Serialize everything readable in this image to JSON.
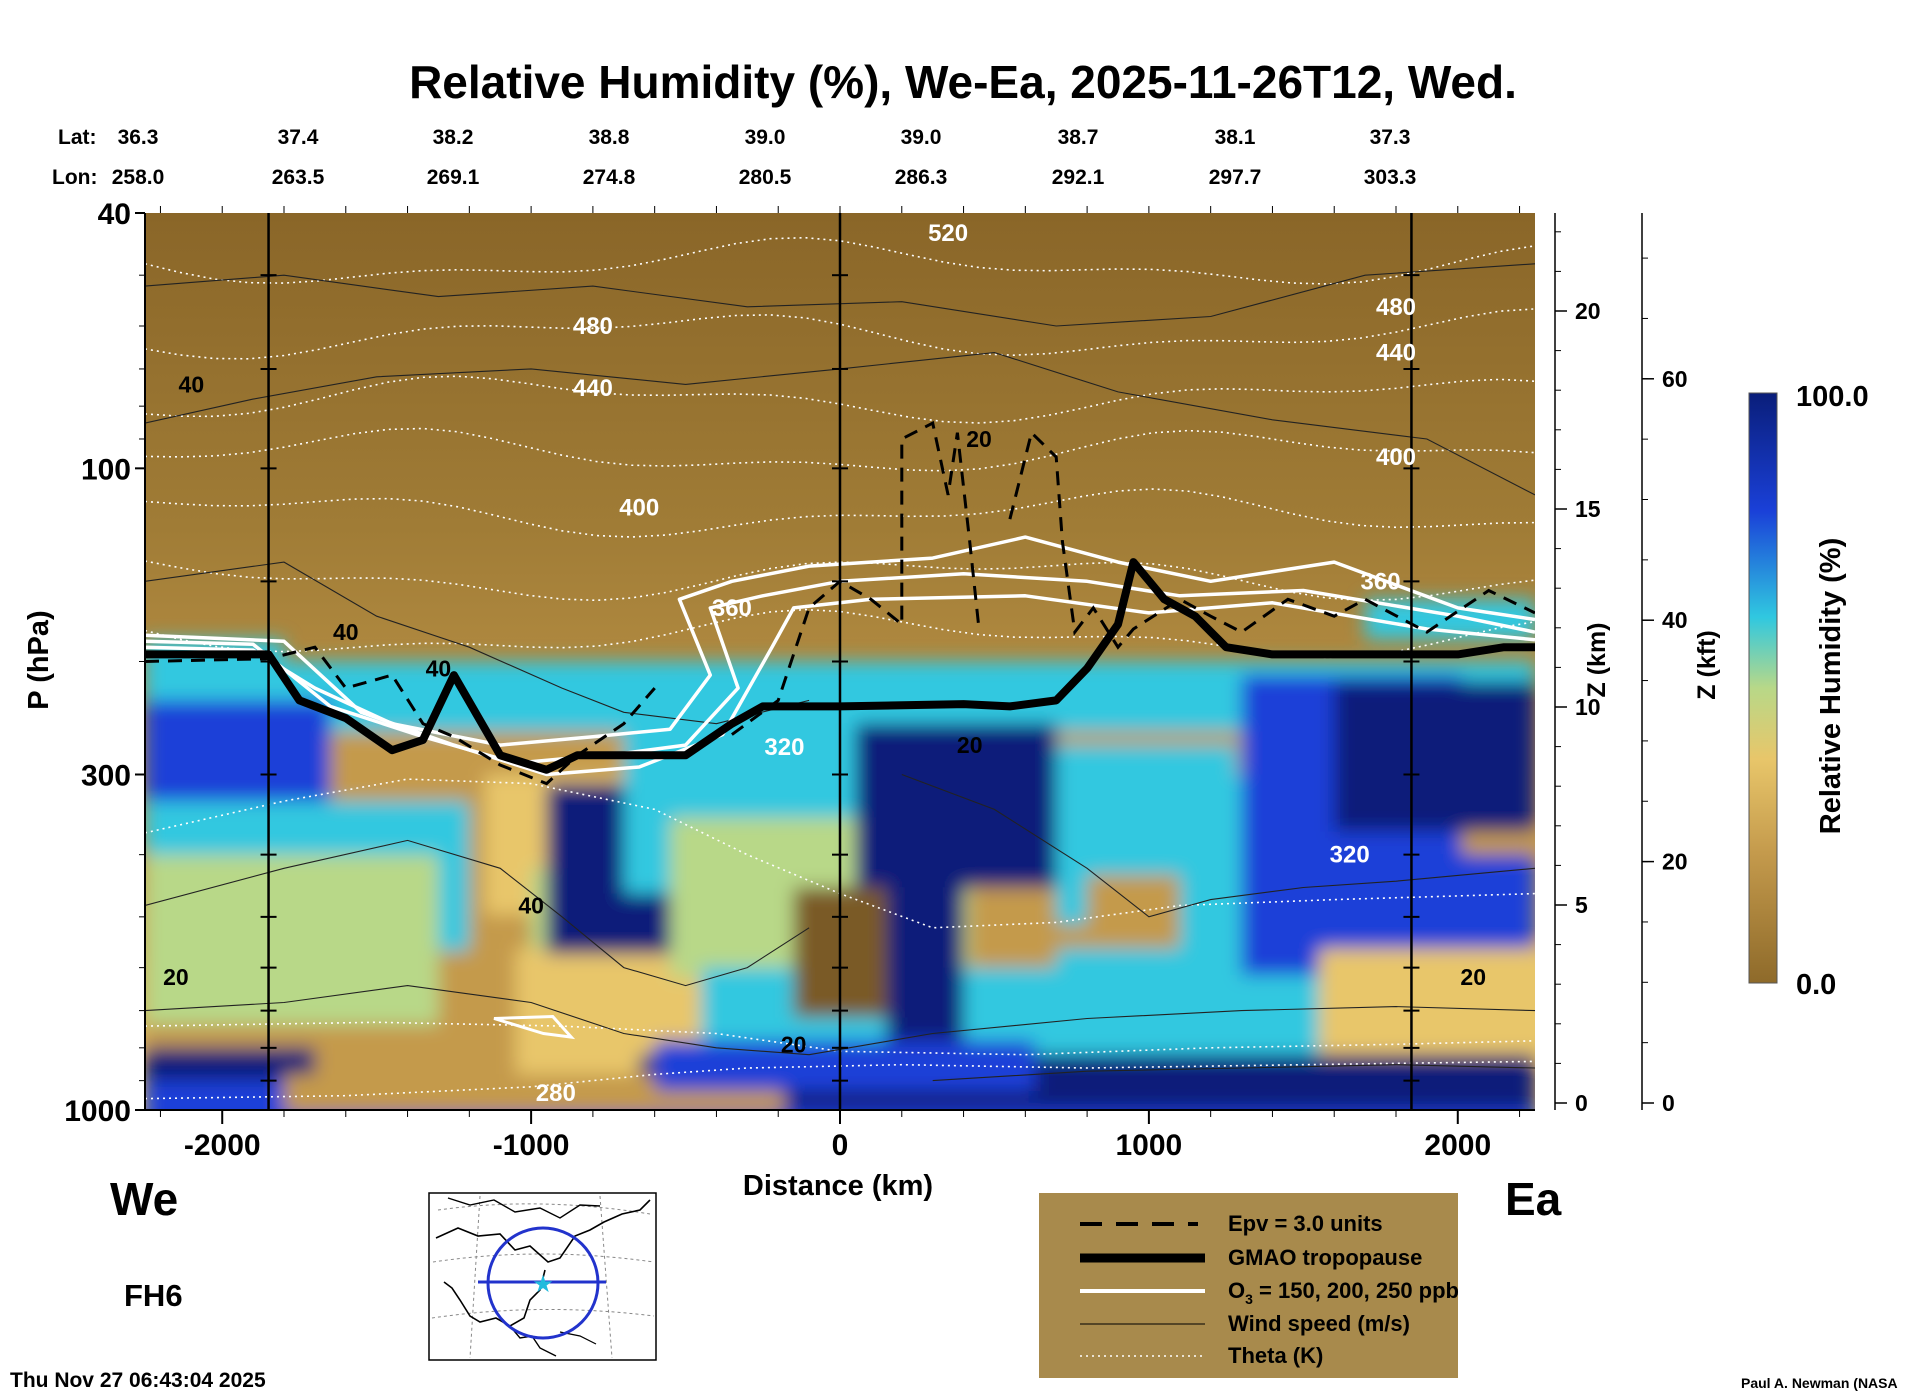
{
  "chart_data": {
    "type": "heatmap",
    "title": "Relative Humidity (%), We-Ea, 2025-11-26T12, Wed.",
    "variable": "Relative Humidity (%)",
    "xlabel": "Distance (km)",
    "ylabel": "P (hPa)",
    "xlim": [
      -2250,
      2250
    ],
    "ylim": [
      1000,
      40
    ],
    "x_ticks": [
      -2000,
      -1000,
      0,
      1000,
      2000
    ],
    "y_ticks": [
      1000,
      300,
      100,
      40
    ],
    "z_km_ticks": [
      0,
      5,
      10,
      15,
      20
    ],
    "z_kft_ticks": [
      0,
      20,
      40,
      60
    ],
    "z_km_label": "Z (km)",
    "z_kft_label": "Z (kft)",
    "colorbar": {
      "min": 0.0,
      "max": 100.0,
      "min_label": "0.0",
      "max_label": "100.0",
      "label": "Relative Humidity (%)"
    },
    "section_markers_km": [
      -1850,
      0,
      1850
    ],
    "lat_label": "Lat:",
    "lon_label": "Lon:",
    "lat": [
      "36.3",
      "37.4",
      "38.2",
      "38.8",
      "39.0",
      "39.0",
      "38.7",
      "38.1",
      "37.3"
    ],
    "lon": [
      "258.0",
      "263.5",
      "269.1",
      "274.8",
      "280.5",
      "286.3",
      "292.1",
      "297.7",
      "303.3"
    ],
    "tropopause": {
      "name": "GMAO tropopause",
      "x": [
        -2250,
        -1850,
        -1750,
        -1600,
        -1450,
        -1350,
        -1250,
        -1100,
        -950,
        -850,
        -700,
        -500,
        -350,
        -250,
        0,
        400,
        550,
        700,
        800,
        900,
        950,
        1050,
        1150,
        1250,
        1400,
        1700,
        2000,
        2150,
        2250
      ],
      "p": [
        195,
        195,
        230,
        245,
        275,
        265,
        210,
        280,
        295,
        280,
        280,
        280,
        250,
        235,
        235,
        233,
        235,
        230,
        205,
        175,
        140,
        160,
        170,
        190,
        195,
        195,
        195,
        190,
        190
      ]
    },
    "theta_contours_K": [
      {
        "value": 280,
        "label": "280"
      },
      {
        "value": 320,
        "label": "320"
      },
      {
        "value": 320,
        "label": "320"
      },
      {
        "value": 360,
        "label": "360"
      },
      {
        "value": 360,
        "label": "360"
      },
      {
        "value": 400,
        "label": "400"
      },
      {
        "value": 400,
        "label": "400"
      },
      {
        "value": 440,
        "label": "440"
      },
      {
        "value": 440,
        "label": "440"
      },
      {
        "value": 480,
        "label": "480"
      },
      {
        "value": 480,
        "label": "480"
      },
      {
        "value": 520,
        "label": "520"
      }
    ],
    "wind_speed_labels": [
      "20",
      "40",
      "40",
      "40",
      "20",
      "20",
      "20",
      "40",
      "20"
    ],
    "ozone_ppb": [
      150,
      200,
      250
    ],
    "epv_units": 3.0
  },
  "legend": {
    "items": [
      {
        "style": "dashed",
        "label": "Epv = 3.0 units"
      },
      {
        "style": "thick",
        "label": "GMAO tropopause"
      },
      {
        "style": "white",
        "label_main": "O",
        "label_sub": "3",
        "label_rest": " = 150, 200, 250 ppb"
      },
      {
        "style": "thin",
        "label": "Wind speed (m/s)"
      },
      {
        "style": "dotted",
        "label": "Theta (K)"
      }
    ]
  },
  "labels": {
    "we": "We",
    "ea": "Ea",
    "forecast_hour": "FH6",
    "timestamp": "Thu Nov 27 06:43:04 2025",
    "credit": "Paul A. Newman (NASA"
  },
  "colors": {
    "dry": "#8e6a2a",
    "tan": "#c49a4c",
    "light": "#e8c66a",
    "green": "#b8d888",
    "cyan": "#30c8e0",
    "blue": "#1a40d8",
    "navy": "#0a1e7a",
    "legend_bg": "#a88a4c",
    "map_circle": "#2233cc",
    "map_star": "#22bbdd"
  }
}
